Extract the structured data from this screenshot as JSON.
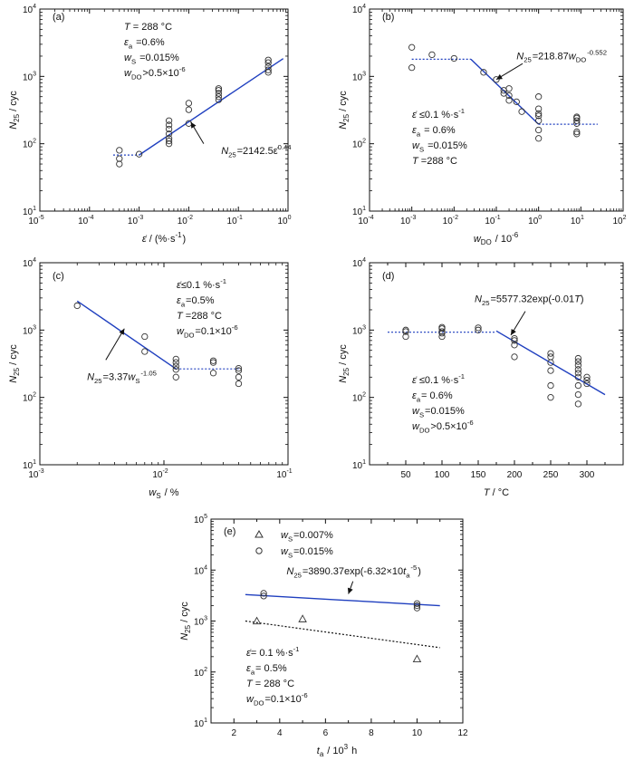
{
  "chart_data": [
    {
      "panel_label": "(a)",
      "type": "scatter",
      "xscale": "log",
      "yscale": "log",
      "xlim": [
        1e-05,
        1
      ],
      "ylim": [
        10,
        10000
      ],
      "xtick_exps": [
        -5,
        -4,
        -3,
        -2,
        -1,
        0
      ],
      "ytick_exps": [
        1,
        2,
        3,
        4
      ],
      "ylabel_main": "N",
      "ylabel_sub": "25",
      "ylabel_unit": " / cyc",
      "xlabel_main": "ε̇",
      "xlabel_unit": " / (%·s",
      "xlabel_sup": "-1",
      "xlabel_close": ")",
      "conditions": [
        {
          "italic": "T",
          "sub": "",
          "text": " = 288 °C",
          "sup": ""
        },
        {
          "italic": "ε",
          "sub": "a",
          "text": " =0.6%",
          "sup": ""
        },
        {
          "italic": "w",
          "sub": "S",
          "text": " =0.015%",
          "sup": ""
        },
        {
          "italic": "w",
          "sub": "DO",
          "text": ">0.5×10",
          "sup": "-6"
        }
      ],
      "points": [
        [
          0.0004,
          80
        ],
        [
          0.0004,
          60
        ],
        [
          0.0004,
          50
        ],
        [
          0.001,
          70
        ],
        [
          0.004,
          120
        ],
        [
          0.004,
          140
        ],
        [
          0.004,
          165
        ],
        [
          0.004,
          190
        ],
        [
          0.004,
          220
        ],
        [
          0.004,
          100
        ],
        [
          0.004,
          110
        ],
        [
          0.01,
          200
        ],
        [
          0.01,
          320
        ],
        [
          0.01,
          400
        ],
        [
          0.04,
          450
        ],
        [
          0.04,
          500
        ],
        [
          0.04,
          560
        ],
        [
          0.04,
          620
        ],
        [
          0.04,
          660
        ],
        [
          0.4,
          1150
        ],
        [
          0.4,
          1250
        ],
        [
          0.4,
          1400
        ],
        [
          0.4,
          1600
        ],
        [
          0.4,
          1750
        ]
      ],
      "lines": [
        {
          "style": "dotted",
          "color": "#1f3fbf",
          "x": [
            0.0003,
            0.001
          ],
          "y": [
            68,
            68
          ]
        },
        {
          "style": "solid",
          "color": "#1f3fbf",
          "x": [
            0.001,
            0.8
          ],
          "y": [
            68,
            1840
          ]
        }
      ],
      "annotations": [
        {
          "italic": "N",
          "sub": "25",
          "text": "=2142.5ε̇",
          "sup": "0.44",
          "tx": 0.045,
          "ty": 70,
          "ax0": 0.02,
          "ay0": 100,
          "ax1": 0.011,
          "ay1": 210
        }
      ]
    },
    {
      "panel_label": "(b)",
      "type": "scatter",
      "xscale": "log",
      "yscale": "log",
      "xlim": [
        0.0001,
        100
      ],
      "ylim": [
        10,
        10000
      ],
      "xtick_exps": [
        -4,
        -3,
        -2,
        -1,
        0,
        1,
        2
      ],
      "ytick_exps": [
        1,
        2,
        3,
        4
      ],
      "ylabel_main": "N",
      "ylabel_sub": "25",
      "ylabel_unit": " / cyc",
      "xlabel_main": "w",
      "xlabel_sub": "DO",
      "xlabel_unit": " / 10",
      "xlabel_sup": "-6",
      "xlabel_close": "",
      "conditions": [
        {
          "italic": "ε̇",
          "sub": "",
          "text": " ≤0.1 %·s",
          "sup": "-1"
        },
        {
          "italic": "ε",
          "sub": "a",
          "text": " = 0.6%",
          "sup": ""
        },
        {
          "italic": "w",
          "sub": "S",
          "text": " =0.015%",
          "sup": ""
        },
        {
          "italic": "T",
          "sub": "",
          "text": " =288 °C",
          "sup": ""
        }
      ],
      "points": [
        [
          0.001,
          2700
        ],
        [
          0.001,
          1350
        ],
        [
          0.003,
          2100
        ],
        [
          0.01,
          1850
        ],
        [
          0.05,
          1150
        ],
        [
          0.1,
          900
        ],
        [
          0.15,
          620
        ],
        [
          0.15,
          560
        ],
        [
          0.2,
          660
        ],
        [
          0.2,
          520
        ],
        [
          0.2,
          440
        ],
        [
          0.3,
          420
        ],
        [
          0.4,
          300
        ],
        [
          1,
          500
        ],
        [
          1,
          330
        ],
        [
          1,
          280
        ],
        [
          1,
          260
        ],
        [
          1,
          220
        ],
        [
          1,
          160
        ],
        [
          1,
          120
        ],
        [
          8,
          250
        ],
        [
          8,
          240
        ],
        [
          8,
          220
        ],
        [
          8,
          200
        ],
        [
          8,
          150
        ],
        [
          8,
          140
        ]
      ],
      "lines": [
        {
          "style": "dotted",
          "color": "#1f3fbf",
          "x": [
            0.001,
            0.025
          ],
          "y": [
            1800,
            1800
          ]
        },
        {
          "style": "solid",
          "color": "#1f3fbf",
          "x": [
            0.025,
            1
          ],
          "y": [
            1800,
            195
          ]
        },
        {
          "style": "dotted",
          "color": "#1f3fbf",
          "x": [
            1,
            25
          ],
          "y": [
            195,
            195
          ]
        }
      ],
      "annotations": [
        {
          "italic": "N",
          "sub": "25",
          "text": "=218.87",
          "italic2": "w",
          "sub2": "DO",
          "sup": "-0.552",
          "tx": 0.3,
          "ty": 1800,
          "ax0": 0.42,
          "ay0": 1550,
          "ax1": 0.1,
          "ay1": 900
        }
      ]
    },
    {
      "panel_label": "(c)",
      "type": "scatter",
      "xscale": "log",
      "yscale": "log",
      "xlim": [
        0.001,
        0.1
      ],
      "ylim": [
        10,
        10000
      ],
      "xtick_exps": [
        -3,
        -2,
        -1
      ],
      "ytick_exps": [
        1,
        2,
        3,
        4
      ],
      "ylabel_main": "N",
      "ylabel_sub": "25",
      "ylabel_unit": " / cyc",
      "xlabel_main": "w",
      "xlabel_sub": "S",
      "xlabel_unit": " /  %",
      "xlabel_sup": "",
      "xlabel_close": "",
      "conditions": [
        {
          "italic": "ε̇",
          "sub": "",
          "text": "≤0.1 %·s",
          "sup": "-1"
        },
        {
          "italic": "ε",
          "sub": "a",
          "text": "=0.5%",
          "sup": ""
        },
        {
          "italic": "T",
          "sub": "",
          "text": " =288 °C",
          "sup": ""
        },
        {
          "italic": "w",
          "sub": "DO",
          "text": "=0.1×10",
          "sup": "-6"
        }
      ],
      "points": [
        [
          0.002,
          2300
        ],
        [
          0.007,
          800
        ],
        [
          0.007,
          480
        ],
        [
          0.0125,
          370
        ],
        [
          0.0125,
          330
        ],
        [
          0.0125,
          290
        ],
        [
          0.0125,
          260
        ],
        [
          0.0125,
          200
        ],
        [
          0.025,
          350
        ],
        [
          0.025,
          330
        ],
        [
          0.025,
          230
        ],
        [
          0.04,
          270
        ],
        [
          0.04,
          250
        ],
        [
          0.04,
          200
        ],
        [
          0.04,
          160
        ]
      ],
      "lines": [
        {
          "style": "solid",
          "color": "#1f3fbf",
          "x": [
            0.002,
            0.0125
          ],
          "y": [
            2700,
            265
          ]
        },
        {
          "style": "dotted",
          "color": "#1f3fbf",
          "x": [
            0.0125,
            0.04
          ],
          "y": [
            265,
            265
          ]
        }
      ],
      "annotations": [
        {
          "italic": "N",
          "sub": "25",
          "text": "=3.37",
          "italic2": "w",
          "sub2": "S",
          "sup": "-1.05",
          "tx": 0.0024,
          "ty": 180,
          "ax0": 0.0034,
          "ay0": 360,
          "ax1": 0.0048,
          "ay1": 1050
        }
      ]
    },
    {
      "panel_label": "(d)",
      "type": "scatter",
      "xscale": "linear",
      "yscale": "log",
      "xlim": [
        0,
        350
      ],
      "ylim": [
        10,
        10000
      ],
      "xticks": [
        50,
        100,
        150,
        200,
        250,
        300
      ],
      "ytick_exps": [
        1,
        2,
        3,
        4
      ],
      "ylabel_main": "N",
      "ylabel_sub": "25",
      "ylabel_unit": " / cyc",
      "xlabel_main": "T",
      "xlabel_unit": " / °C",
      "xlabel_sup": "",
      "xlabel_close": "",
      "conditions": [
        {
          "italic": "ε̇",
          "sub": "",
          "text": " ≤0.1 %·s",
          "sup": "-1"
        },
        {
          "italic": "ε",
          "sub": "a",
          "text": "= 0.6%",
          "sup": ""
        },
        {
          "italic": "w",
          "sub": "S",
          "text": "=0.015%",
          "sup": ""
        },
        {
          "italic": "w",
          "sub": "DO",
          "text": ">0.5×10",
          "sup": "-6"
        }
      ],
      "points": [
        [
          50,
          1000
        ],
        [
          50,
          950
        ],
        [
          50,
          800
        ],
        [
          100,
          1100
        ],
        [
          100,
          1050
        ],
        [
          100,
          950
        ],
        [
          100,
          900
        ],
        [
          100,
          800
        ],
        [
          150,
          1080
        ],
        [
          150,
          1000
        ],
        [
          200,
          750
        ],
        [
          200,
          700
        ],
        [
          200,
          600
        ],
        [
          200,
          400
        ],
        [
          250,
          450
        ],
        [
          250,
          400
        ],
        [
          250,
          330
        ],
        [
          250,
          250
        ],
        [
          250,
          150
        ],
        [
          250,
          100
        ],
        [
          288,
          380
        ],
        [
          288,
          340
        ],
        [
          288,
          300
        ],
        [
          288,
          260
        ],
        [
          288,
          230
        ],
        [
          288,
          200
        ],
        [
          288,
          150
        ],
        [
          288,
          110
        ],
        [
          288,
          80
        ],
        [
          300,
          200
        ],
        [
          300,
          180
        ],
        [
          300,
          160
        ]
      ],
      "lines": [
        {
          "style": "dotted",
          "color": "#1f3fbf",
          "x": [
            25,
            175
          ],
          "y": [
            930,
            930
          ]
        },
        {
          "style": "solid",
          "color": "#1f3fbf",
          "x": [
            175,
            325
          ],
          "y": [
            970,
            110
          ]
        }
      ],
      "annotations": [
        {
          "italic": "N",
          "sub": "25",
          "text": "=5577.32exp(-0.01",
          "italic2": "T",
          "sub2": "",
          "sup": "",
          "tail": ")",
          "tx": 145,
          "ty": 2600,
          "ax0": 215,
          "ay0": 1900,
          "ax1": 195,
          "ay1": 840
        }
      ]
    },
    {
      "panel_label": "(e)",
      "type": "scatter",
      "xscale": "linear",
      "yscale": "log",
      "xlim": [
        1,
        12
      ],
      "ylim": [
        10,
        100000
      ],
      "xticks": [
        2,
        4,
        6,
        8,
        10,
        12
      ],
      "ytick_exps": [
        1,
        2,
        3,
        4,
        5
      ],
      "ylabel_main": "N",
      "ylabel_sub": "25",
      "ylabel_unit": " / cyc",
      "xlabel_main": "t",
      "xlabel_sub": "a",
      "xlabel_unit": " / 10",
      "xlabel_sup": "3",
      "xlabel_close": " h",
      "legend": [
        {
          "marker": "triangle",
          "italic": "w",
          "sub": "S",
          "text": "=0.007%"
        },
        {
          "marker": "circle",
          "italic": "w",
          "sub": "S",
          "text": "=0.015%"
        }
      ],
      "conditions": [
        {
          "italic": "ε̇",
          "sub": "",
          "text": "= 0.1 %·s",
          "sup": "-1"
        },
        {
          "italic": "ε",
          "sub": "a",
          "text": "= 0.5%",
          "sup": ""
        },
        {
          "italic": "T",
          "sub": "",
          "text": " = 288 °C",
          "sup": ""
        },
        {
          "italic": "w",
          "sub": "DO",
          "text": "=0.1×10",
          "sup": "-6"
        }
      ],
      "series": [
        {
          "name": "w_S=0.007%",
          "marker": "triangle",
          "points": [
            [
              3,
              1000
            ],
            [
              5,
              1100
            ],
            [
              10,
              180
            ]
          ]
        },
        {
          "name": "w_S=0.015%",
          "marker": "circle",
          "points": [
            [
              3.3,
              3500
            ],
            [
              3.3,
              3100
            ],
            [
              10,
              2200
            ],
            [
              10,
              2000
            ],
            [
              10,
              1800
            ]
          ]
        }
      ],
      "lines": [
        {
          "style": "solid",
          "color": "#1f3fbf",
          "x": [
            2.5,
            11
          ],
          "y": [
            3300,
            2000
          ]
        },
        {
          "style": "dotted",
          "color": "#111111",
          "x": [
            2.5,
            11
          ],
          "y": [
            1000,
            300
          ]
        }
      ],
      "annotations": [
        {
          "italic": "N",
          "sub": "25",
          "text": "=3890.37exp(-6.32×10",
          "sup": "-5",
          "italic2": "t",
          "sub2": "a",
          "tail": ")",
          "tx": 4.3,
          "ty": 8200,
          "ax0": 7.2,
          "ay0": 6000,
          "ax1": 7.0,
          "ay1": 3400
        }
      ]
    }
  ]
}
